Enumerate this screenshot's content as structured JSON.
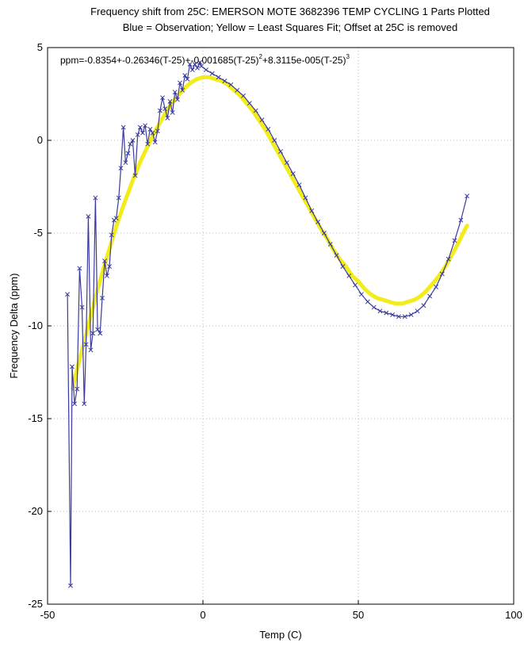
{
  "chart_data": {
    "type": "line",
    "title": "Frequency shift from 25C: EMERSON MOTE 3682396 TEMP CYCLING 1 Parts Plotted",
    "subtitle": "Blue = Observation; Yellow = Least Squares Fit; Offset at 25C is removed",
    "xlabel": "Temp (C)",
    "ylabel": "Frequency Delta (ppm)",
    "xlim": [
      -50,
      100
    ],
    "ylim": [
      -25,
      5
    ],
    "xticks": [
      "-50",
      "0",
      "50",
      "100"
    ],
    "yticks": [
      "5",
      "0",
      "-5",
      "-10",
      "-15",
      "-20",
      "-25"
    ],
    "grid": true,
    "annotation": {
      "prefix": "ppm=-0.8354+-0.26346(T-25)+-0.001685(T-25)",
      "exp1": "2",
      "middle": "+8.3115e-005(T-25)",
      "exp2": "3"
    },
    "colors": {
      "observation": "#3a3a9e",
      "fit": "#f2ec1a"
    },
    "series": [
      {
        "marker": "x",
        "x": [
          -43.6,
          -42.6,
          -42.1,
          -41.3,
          -40.5,
          -39.7,
          -38.9,
          -38.2,
          -37.6,
          -36.9,
          -36.1,
          -35.4,
          -34.6,
          -33.9,
          -33.1,
          -32.4,
          -31.6,
          -30.9,
          -30.1,
          -29.4,
          -28.6,
          -27.9,
          -27.1,
          -26.4,
          -25.6,
          -24.9,
          -24.1,
          -23.4,
          -22.6,
          -21.8,
          -21.0,
          -20.2,
          -19.4,
          -18.6,
          -17.8,
          -17.0,
          -16.2,
          -15.4,
          -14.6,
          -13.8,
          -13.0,
          -12.2,
          -11.4,
          -10.6,
          -9.8,
          -9.0,
          -8.2,
          -7.4,
          -6.6,
          -5.8,
          -5.0,
          -4.2,
          -3.4,
          -2.6,
          -1.8,
          -1.0,
          -0.5,
          1,
          3,
          5,
          7,
          9,
          11,
          13,
          15,
          17,
          19,
          21,
          23,
          25,
          27,
          29,
          31,
          33,
          35,
          37,
          39,
          41,
          43,
          45,
          47,
          49,
          51,
          53,
          55,
          57,
          59,
          61,
          63,
          65,
          67,
          69,
          71,
          73,
          75,
          77,
          79,
          81,
          83,
          85
        ],
        "values": [
          -8.3,
          -24.0,
          -12.2,
          -14.2,
          -13.4,
          -6.9,
          -9.0,
          -14.2,
          -11.0,
          -4.1,
          -11.3,
          -10.4,
          -3.1,
          -10.2,
          -10.4,
          -8.5,
          -6.5,
          -7.3,
          -6.8,
          -5.1,
          -4.3,
          -4.2,
          -3.1,
          -1.5,
          0.7,
          -1.2,
          -0.7,
          -0.2,
          0.0,
          -1.9,
          0.3,
          0.7,
          0.4,
          0.8,
          -0.2,
          0.6,
          0.4,
          -0.1,
          0.5,
          1.6,
          2.3,
          1.7,
          1.2,
          2.1,
          1.5,
          2.6,
          2.2,
          3.1,
          2.7,
          3.5,
          3.3,
          4.1,
          3.8,
          4.1,
          3.9,
          4.2,
          4.0,
          3.8,
          3.6,
          3.4,
          3.2,
          3.0,
          2.7,
          2.4,
          2.0,
          1.6,
          1.1,
          0.6,
          0.0,
          -0.6,
          -1.2,
          -1.8,
          -2.4,
          -3.1,
          -3.8,
          -4.4,
          -5.0,
          -5.6,
          -6.2,
          -6.8,
          -7.3,
          -7.8,
          -8.3,
          -8.7,
          -9.0,
          -9.2,
          -9.3,
          -9.4,
          -9.5,
          -9.5,
          -9.4,
          -9.2,
          -8.9,
          -8.4,
          -7.9,
          -7.2,
          -6.4,
          -5.4,
          -4.3,
          -3.0
        ]
      },
      {
        "x": [
          -42,
          -40,
          -38,
          -36,
          -34,
          -32,
          -30,
          -28,
          -26,
          -24,
          -22,
          -20,
          -18,
          -16,
          -14,
          -12,
          -10,
          -8,
          -6,
          -4,
          -2,
          0,
          2,
          4,
          6,
          8,
          10,
          12,
          14,
          16,
          18,
          20,
          22,
          24,
          26,
          28,
          30,
          32,
          34,
          36,
          38,
          40,
          42,
          44,
          46,
          48,
          50,
          52,
          54,
          56,
          58,
          60,
          62,
          64,
          66,
          68,
          70,
          72,
          74,
          76,
          78,
          80,
          82,
          84,
          85
        ],
        "values": [
          -13.4,
          -12.0,
          -10.7,
          -9.4,
          -8.1,
          -6.9,
          -5.8,
          -4.7,
          -3.7,
          -2.8,
          -1.9,
          -1.1,
          -0.4,
          0.3,
          0.9,
          1.5,
          2.0,
          2.4,
          2.8,
          3.1,
          3.3,
          3.4,
          3.4,
          3.3,
          3.2,
          3.0,
          2.7,
          2.4,
          2.0,
          1.6,
          1.1,
          0.6,
          0.0,
          -0.6,
          -1.2,
          -1.8,
          -2.4,
          -3.0,
          -3.6,
          -4.2,
          -4.8,
          -5.3,
          -5.9,
          -6.4,
          -6.8,
          -7.3,
          -7.6,
          -8.0,
          -8.3,
          -8.5,
          -8.6,
          -8.7,
          -8.8,
          -8.8,
          -8.7,
          -8.6,
          -8.4,
          -8.1,
          -7.7,
          -7.3,
          -6.8,
          -6.2,
          -5.6,
          -4.9,
          -4.6
        ]
      }
    ]
  }
}
